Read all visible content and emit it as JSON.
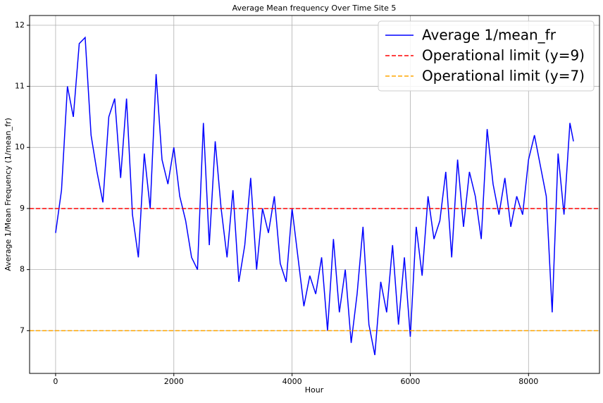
{
  "chart_data": {
    "type": "line",
    "title": "Average Mean frequency Over Time Site 5",
    "x_label": "Hour",
    "y_label": "Average 1/Mean Frequency (1/mean_fr)",
    "x": [
      0,
      100,
      200,
      300,
      400,
      500,
      600,
      700,
      800,
      900,
      1000,
      1100,
      1200,
      1300,
      1400,
      1500,
      1600,
      1700,
      1800,
      1900,
      2000,
      2100,
      2200,
      2300,
      2400,
      2500,
      2600,
      2700,
      2800,
      2900,
      3000,
      3100,
      3200,
      3300,
      3400,
      3500,
      3600,
      3700,
      3800,
      3900,
      4000,
      4100,
      4200,
      4300,
      4400,
      4500,
      4600,
      4700,
      4800,
      4900,
      5000,
      5100,
      5200,
      5300,
      5400,
      5500,
      5600,
      5700,
      5800,
      5900,
      6000,
      6100,
      6200,
      6300,
      6400,
      6500,
      6600,
      6700,
      6800,
      6900,
      7000,
      7100,
      7200,
      7300,
      7400,
      7500,
      7600,
      7700,
      7800,
      7900,
      8000,
      8100,
      8200,
      8300,
      8400,
      8500,
      8600,
      8700,
      8760
    ],
    "series": [
      {
        "name": "Average 1/mean_fr",
        "color": "#0000ff",
        "values": [
          8.6,
          9.3,
          11.0,
          10.5,
          11.7,
          11.8,
          10.2,
          9.6,
          9.1,
          10.5,
          10.8,
          9.5,
          10.8,
          8.9,
          8.2,
          9.9,
          9.0,
          11.2,
          9.8,
          9.4,
          10.0,
          9.2,
          8.8,
          8.2,
          8.0,
          10.4,
          8.4,
          10.1,
          9.0,
          8.2,
          9.3,
          7.8,
          8.4,
          9.5,
          8.0,
          9.0,
          8.6,
          9.2,
          8.1,
          7.8,
          9.0,
          8.2,
          7.4,
          7.9,
          7.6,
          8.2,
          7.0,
          8.5,
          7.3,
          8.0,
          6.8,
          7.6,
          8.7,
          7.1,
          6.6,
          7.8,
          7.3,
          8.4,
          7.1,
          8.2,
          6.9,
          8.7,
          7.9,
          9.2,
          8.5,
          8.8,
          9.6,
          8.2,
          9.8,
          8.7,
          9.6,
          9.2,
          8.5,
          10.3,
          9.4,
          8.9,
          9.5,
          8.7,
          9.2,
          8.9,
          9.8,
          10.2,
          9.7,
          9.2,
          7.3,
          9.9,
          8.9,
          10.4,
          10.1
        ]
      }
    ],
    "hlines": [
      {
        "name": "Operational limit (y=9)",
        "color": "#ff0000",
        "value": 9
      },
      {
        "name": "Operational limit (y=7)",
        "color": "#ffa500",
        "value": 7
      }
    ],
    "xlim": [
      -440,
      9200
    ],
    "ylim": [
      6.3,
      12.16
    ],
    "xticks": [
      0,
      2000,
      4000,
      6000,
      8000
    ],
    "yticks": [
      7,
      8,
      9,
      10,
      11,
      12
    ],
    "grid": true,
    "legend": "upper right"
  }
}
